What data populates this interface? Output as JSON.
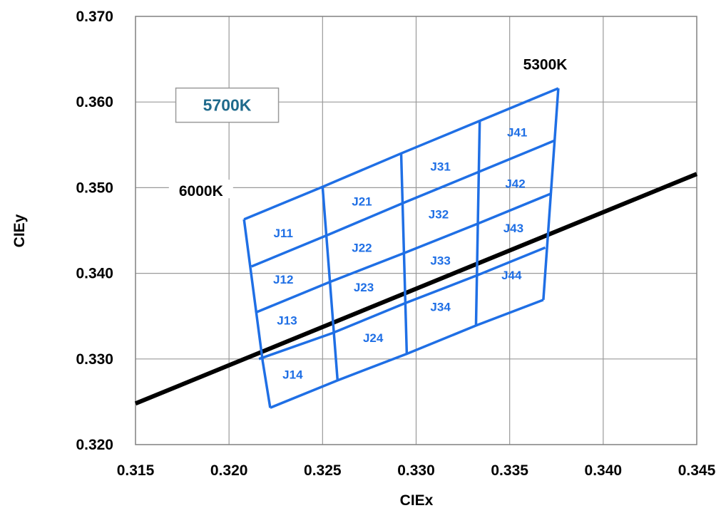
{
  "chart_data": {
    "type": "scatter",
    "title": "",
    "xlabel": "CIEx",
    "ylabel": "CIEy",
    "xlim": [
      0.315,
      0.345
    ],
    "ylim": [
      0.32,
      0.37
    ],
    "xticks": [
      "0.315",
      "0.320",
      "0.325",
      "0.330",
      "0.335",
      "0.340",
      "0.345"
    ],
    "yticks": [
      "0.320",
      "0.330",
      "0.340",
      "0.350",
      "0.360",
      "0.370"
    ],
    "grid": true,
    "bin_color": "#1f6fe5",
    "locus_color": "#000000",
    "locus_line": {
      "x": [
        0.315,
        0.345
      ],
      "y": [
        0.3248,
        0.3516
      ]
    },
    "bin_grid": {
      "columns": [
        {
          "x": [
            0.3208,
            0.3218,
            0.3222
          ],
          "y": [
            0.3463,
            0.3297,
            0.3243
          ]
        },
        {
          "x": [
            0.325,
            0.3258
          ],
          "y": [
            0.3501,
            0.3275
          ]
        },
        {
          "x": [
            0.3292,
            0.3295
          ],
          "y": [
            0.354,
            0.3306
          ]
        },
        {
          "x": [
            0.3334,
            0.3332
          ],
          "y": [
            0.3578,
            0.3339
          ]
        },
        {
          "x": [
            0.3376,
            0.3368
          ],
          "y": [
            0.3616,
            0.3369
          ]
        }
      ],
      "rows": [
        {
          "x": [
            0.3208,
            0.325,
            0.3292,
            0.3334,
            0.3376
          ],
          "y": [
            0.3463,
            0.3501,
            0.354,
            0.3578,
            0.3616
          ]
        },
        {
          "x": [
            0.3212,
            0.3253,
            0.3293,
            0.3333,
            0.3374
          ],
          "y": [
            0.3408,
            0.3445,
            0.3482,
            0.3518,
            0.3555
          ]
        },
        {
          "x": [
            0.3214,
            0.3254,
            0.3294,
            0.3333,
            0.3372
          ],
          "y": [
            0.3354,
            0.339,
            0.3424,
            0.3458,
            0.3493
          ]
        },
        {
          "x": [
            0.3216,
            0.3255,
            0.3294,
            0.3333,
            0.3369
          ],
          "y": [
            0.33,
            0.333,
            0.3365,
            0.3398,
            0.343
          ]
        },
        {
          "x": [
            0.3222,
            0.3258,
            0.3295,
            0.3332,
            0.3368
          ],
          "y": [
            0.3243,
            0.3275,
            0.3306,
            0.3339,
            0.3369
          ]
        }
      ]
    },
    "bins": [
      {
        "label": "J11",
        "x": 0.3229,
        "y": 0.3447
      },
      {
        "label": "J12",
        "x": 0.3229,
        "y": 0.3393
      },
      {
        "label": "J13",
        "x": 0.3231,
        "y": 0.3345
      },
      {
        "label": "J14",
        "x": 0.3234,
        "y": 0.3282
      },
      {
        "label": "J21",
        "x": 0.3271,
        "y": 0.3484
      },
      {
        "label": "J22",
        "x": 0.3271,
        "y": 0.343
      },
      {
        "label": "J23",
        "x": 0.3272,
        "y": 0.3384
      },
      {
        "label": "J24",
        "x": 0.3277,
        "y": 0.3325
      },
      {
        "label": "J31",
        "x": 0.3313,
        "y": 0.3525
      },
      {
        "label": "J32",
        "x": 0.3312,
        "y": 0.3469
      },
      {
        "label": "J33",
        "x": 0.3313,
        "y": 0.3415
      },
      {
        "label": "J34",
        "x": 0.3313,
        "y": 0.3361
      },
      {
        "label": "J41",
        "x": 0.3354,
        "y": 0.3565
      },
      {
        "label": "J42",
        "x": 0.3353,
        "y": 0.3505
      },
      {
        "label": "J43",
        "x": 0.3352,
        "y": 0.3453
      },
      {
        "label": "J44",
        "x": 0.3351,
        "y": 0.3398
      }
    ],
    "annotations": [
      {
        "text": "6000K",
        "x": 0.3185,
        "y": 0.3496
      },
      {
        "text": "5300K",
        "x": 0.3369,
        "y": 0.3644
      },
      {
        "text": "5700K",
        "x": 0.3199,
        "y": 0.3598,
        "boxed": true,
        "color": "#1f6a8c"
      }
    ]
  }
}
